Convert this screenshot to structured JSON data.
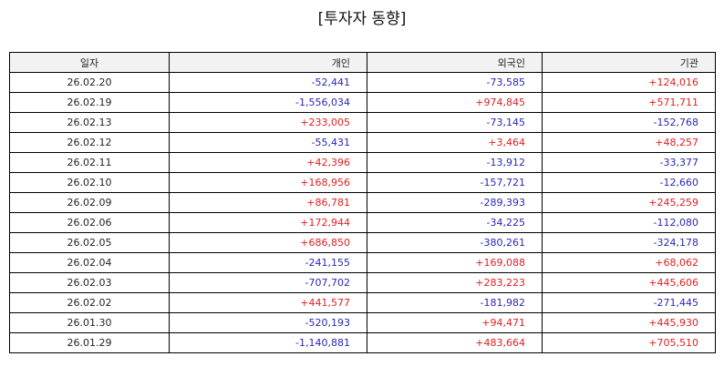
{
  "title": "[투자자 동향]",
  "colors": {
    "positive": "#e02020",
    "negative": "#2828b8"
  },
  "headers": {
    "date": "일자",
    "individual": "개인",
    "foreign": "외국인",
    "institution": "기관"
  },
  "rows": [
    {
      "date": "26.02.20",
      "individual": "-52,441",
      "foreign": "-73,585",
      "institution": "+124,016"
    },
    {
      "date": "26.02.19",
      "individual": "-1,556,034",
      "foreign": "+974,845",
      "institution": "+571,711"
    },
    {
      "date": "26.02.13",
      "individual": "+233,005",
      "foreign": "-73,145",
      "institution": "-152,768"
    },
    {
      "date": "26.02.12",
      "individual": "-55,431",
      "foreign": "+3,464",
      "institution": "+48,257"
    },
    {
      "date": "26.02.11",
      "individual": "+42,396",
      "foreign": "-13,912",
      "institution": "-33,377"
    },
    {
      "date": "26.02.10",
      "individual": "+168,956",
      "foreign": "-157,721",
      "institution": "-12,660"
    },
    {
      "date": "26.02.09",
      "individual": "+86,781",
      "foreign": "-289,393",
      "institution": "+245,259"
    },
    {
      "date": "26.02.06",
      "individual": "+172,944",
      "foreign": "-34,225",
      "institution": "-112,080"
    },
    {
      "date": "26.02.05",
      "individual": "+686,850",
      "foreign": "-380,261",
      "institution": "-324,178"
    },
    {
      "date": "26.02.04",
      "individual": "-241,155",
      "foreign": "+169,088",
      "institution": "+68,062"
    },
    {
      "date": "26.02.03",
      "individual": "-707,702",
      "foreign": "+283,223",
      "institution": "+445,606"
    },
    {
      "date": "26.02.02",
      "individual": "+441,577",
      "foreign": "-181,982",
      "institution": "-271,445"
    },
    {
      "date": "26.01.30",
      "individual": "-520,193",
      "foreign": "+94,471",
      "institution": "+445,930"
    },
    {
      "date": "26.01.29",
      "individual": "-1,140,881",
      "foreign": "+483,664",
      "institution": "+705,510"
    }
  ]
}
